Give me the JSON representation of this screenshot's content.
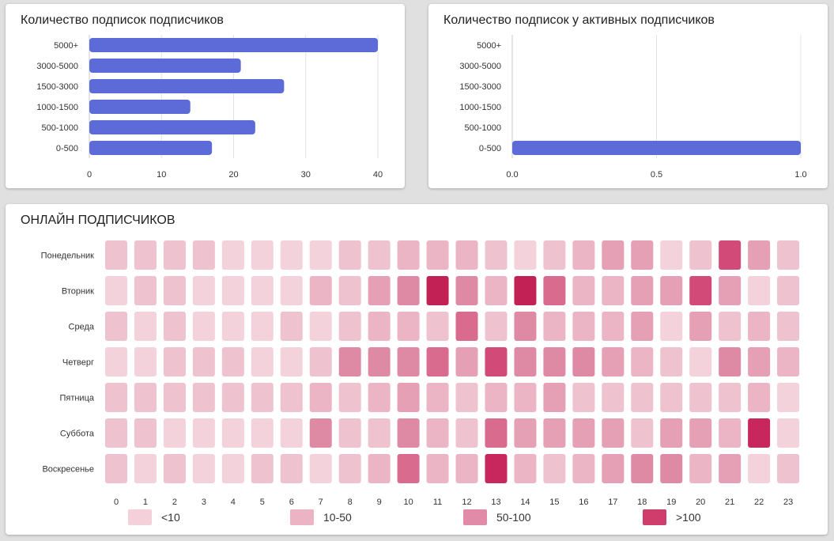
{
  "chart_data": [
    {
      "type": "bar",
      "orientation": "horizontal",
      "title": "Количество подписок подписчиков",
      "categories": [
        "5000+",
        "3000-5000",
        "1500-3000",
        "1000-1500",
        "500-1000",
        "0-500"
      ],
      "values": [
        40,
        21,
        27,
        14,
        23,
        17
      ],
      "xlim": [
        0,
        40
      ],
      "xticks": [
        "0",
        "10",
        "20",
        "30",
        "40"
      ],
      "grid": true,
      "color": "#5c6bd7"
    },
    {
      "type": "bar",
      "orientation": "horizontal",
      "title": "Количество подписок у активных подписчиков",
      "categories": [
        "5000+",
        "3000-5000",
        "1500-3000",
        "1000-1500",
        "500-1000",
        "0-500"
      ],
      "values": [
        0,
        0,
        0,
        0,
        0,
        1
      ],
      "xlim": [
        0,
        1
      ],
      "xticks": [
        "0.0",
        "0.5",
        "1.0"
      ],
      "grid": true,
      "color": "#5c6bd7"
    },
    {
      "type": "heatmap",
      "title": "ОНЛАЙН ПОДПИСЧИКОВ",
      "rows": [
        "Понедельник",
        "Вторник",
        "Среда",
        "Четверг",
        "Пятница",
        "Суббота",
        "Воскресенье"
      ],
      "columns": [
        "0",
        "1",
        "2",
        "3",
        "4",
        "5",
        "6",
        "7",
        "8",
        "9",
        "10",
        "11",
        "12",
        "13",
        "14",
        "15",
        "16",
        "17",
        "18",
        "19",
        "20",
        "21",
        "22",
        "23"
      ],
      "levels": [
        [
          2,
          2,
          2,
          2,
          1,
          1,
          1,
          1,
          2,
          2,
          3,
          3,
          3,
          2,
          1,
          2,
          3,
          4,
          4,
          1,
          2,
          7,
          4,
          2
        ],
        [
          1,
          2,
          2,
          1,
          1,
          1,
          1,
          3,
          2,
          4,
          5,
          9,
          5,
          3,
          9,
          6,
          3,
          3,
          4,
          4,
          7,
          4,
          1,
          2
        ],
        [
          2,
          1,
          2,
          1,
          1,
          1,
          2,
          1,
          2,
          3,
          3,
          2,
          6,
          2,
          5,
          3,
          3,
          3,
          4,
          1,
          4,
          2,
          3,
          2
        ],
        [
          1,
          1,
          2,
          2,
          2,
          1,
          1,
          2,
          5,
          5,
          5,
          6,
          4,
          7,
          5,
          5,
          5,
          4,
          3,
          2,
          1,
          5,
          4,
          3
        ],
        [
          2,
          2,
          2,
          2,
          2,
          2,
          2,
          3,
          2,
          3,
          4,
          3,
          2,
          3,
          3,
          4,
          2,
          2,
          2,
          2,
          2,
          2,
          3,
          1
        ],
        [
          2,
          2,
          1,
          1,
          1,
          1,
          1,
          5,
          2,
          2,
          5,
          3,
          2,
          6,
          4,
          4,
          4,
          4,
          2,
          4,
          4,
          3,
          8,
          1
        ],
        [
          2,
          1,
          2,
          1,
          1,
          2,
          2,
          1,
          2,
          3,
          6,
          3,
          3,
          8,
          3,
          2,
          3,
          4,
          5,
          5,
          3,
          4,
          1,
          2
        ]
      ],
      "color_scale": [
        "#f6dce4",
        "#f3d2dc",
        "#efc2d0",
        "#ecb5c6",
        "#e5a0b5",
        "#df8aa5",
        "#d96b8f",
        "#d24a78",
        "#c8275e",
        "#c22156"
      ],
      "legend": [
        {
          "label": "<10",
          "color": "#f3d0da"
        },
        {
          "label": "10-50",
          "color": "#ebb3c4"
        },
        {
          "label": "50-100",
          "color": "#e18ba8"
        },
        {
          "label": ">100",
          "color": "#cf3d6d"
        }
      ]
    }
  ]
}
